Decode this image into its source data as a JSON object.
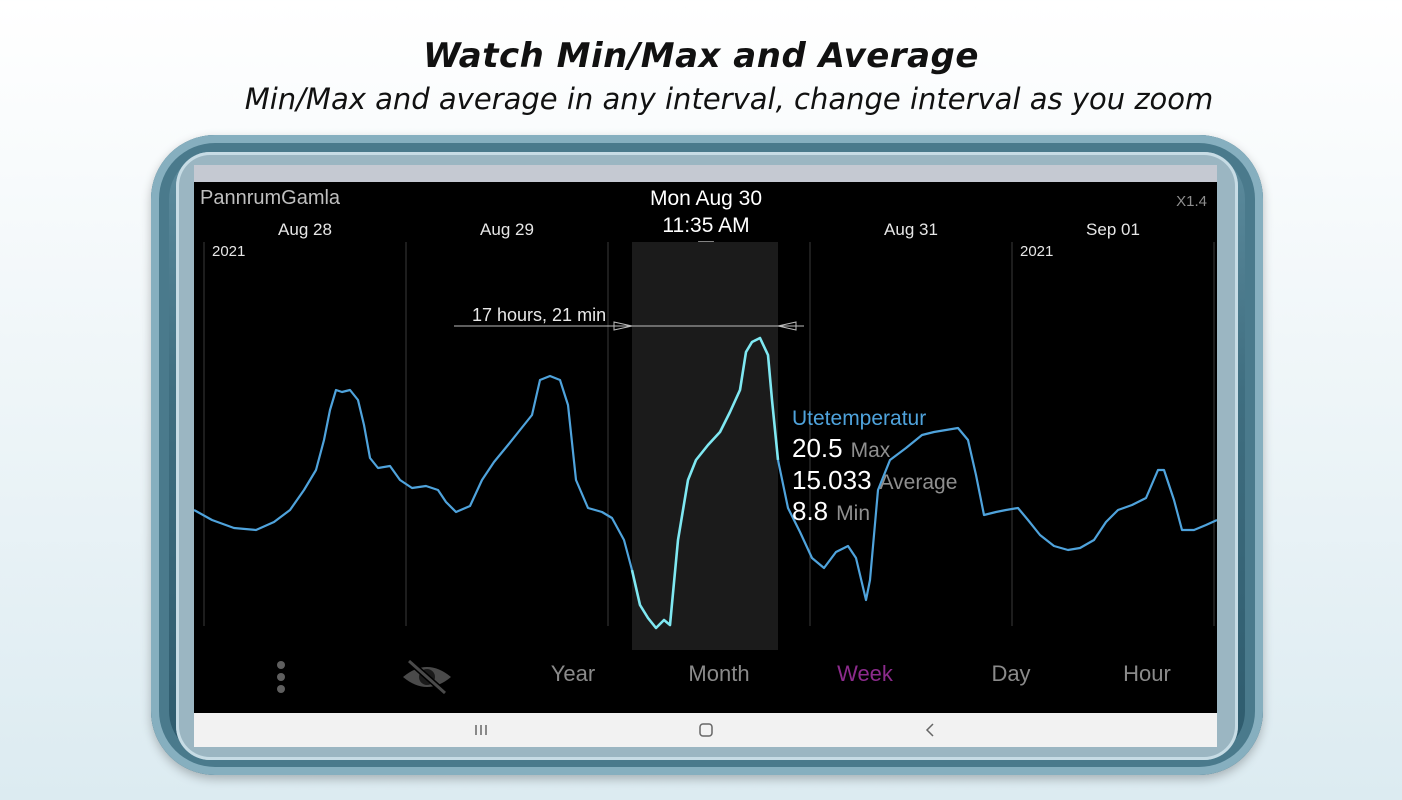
{
  "promo": {
    "headline": "Watch Min/Max and Average",
    "subline": "Min/Max and average in any interval, change interval as you zoom"
  },
  "app": {
    "title": "PannrumGamla",
    "zoom": "X1.4",
    "cursor_date": "Mon Aug 30",
    "cursor_time": "11:35 AM"
  },
  "timeline": {
    "day_labels": [
      "Aug 28",
      "Aug 29",
      "Aug 31",
      "Sep 01"
    ],
    "year_labels": [
      "2021",
      "2021"
    ]
  },
  "selection": {
    "interval_label": "17 hours, 21 min"
  },
  "stats": {
    "series_name": "Utetemperatur",
    "max_value": "20.5",
    "max_label": "Max",
    "avg_value": "15.033",
    "avg_label": "Average",
    "min_value": "8.8",
    "min_label": "Min"
  },
  "toolbar": {
    "menu_icon": "more-vert-icon",
    "visibility_icon": "eye-off-icon",
    "year": "Year",
    "month": "Month",
    "week": "Week",
    "day": "Day",
    "hour": "Hour",
    "active": "Week"
  },
  "navbar": {
    "recent_icon": "recent-apps-icon",
    "home_icon": "home-icon",
    "back_icon": "back-icon"
  },
  "colors": {
    "series": "#4fa3dc",
    "series_selected": "#7fe8f2",
    "active_tab": "#8c2b8c",
    "device_frame": "#3f6e80"
  }
}
